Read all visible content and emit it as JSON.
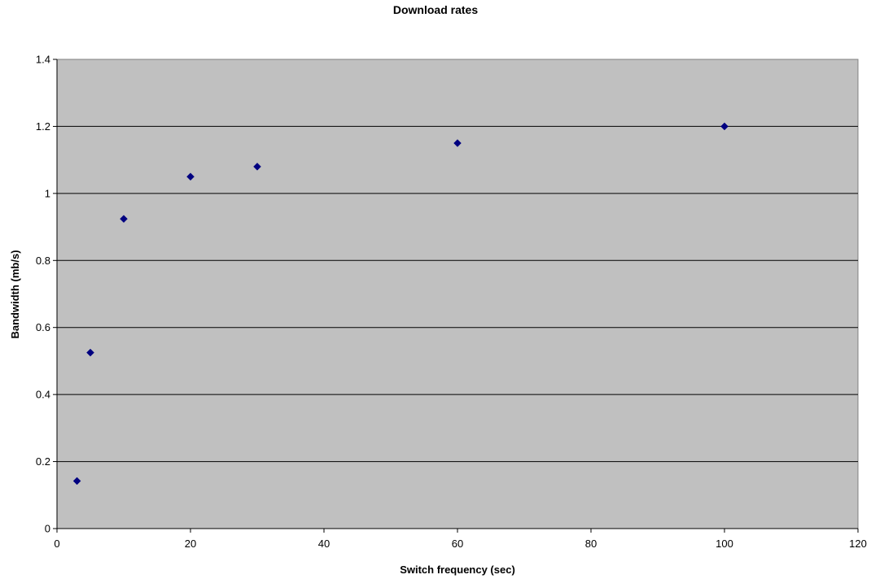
{
  "chart_data": {
    "type": "scatter",
    "title": "Download rates",
    "xlabel": "Switch frequency (sec)",
    "ylabel": "Bandwidth (mb/s)",
    "xlim": [
      0,
      120
    ],
    "ylim": [
      0,
      1.4
    ],
    "x_ticks": [
      0,
      20,
      40,
      60,
      80,
      100,
      120
    ],
    "y_ticks": [
      0,
      0.2,
      0.4,
      0.6,
      0.8,
      1,
      1.2,
      1.4
    ],
    "x_tick_labels": [
      "0",
      "20",
      "40",
      "60",
      "80",
      "100",
      "120"
    ],
    "y_tick_labels": [
      "0",
      "0.2",
      "0.4",
      "0.6",
      "0.8",
      "1",
      "1.2",
      "1.4"
    ],
    "grid": true,
    "legend": false,
    "marker": "diamond",
    "colors": {
      "plot_area": "#c0c0c0",
      "gridline": "#000000",
      "marker": "#000080",
      "background": "#ffffff"
    },
    "series": [
      {
        "x": [
          3,
          5,
          10,
          20,
          30,
          60,
          100
        ],
        "y": [
          0.142,
          0.525,
          0.924,
          1.05,
          1.08,
          1.15,
          1.2
        ]
      }
    ]
  }
}
